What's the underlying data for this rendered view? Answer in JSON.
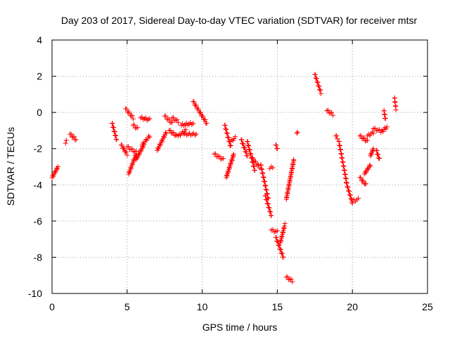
{
  "chart_data": {
    "type": "scatter",
    "title": "Day 203 of 2017, Sidereal Day-to-day VTEC variation (SDTVAR) for receiver mtsr",
    "xlabel": "GPS time / hours",
    "ylabel": "SDTVAR / TECUs",
    "xlim": [
      0,
      25
    ],
    "ylim": [
      -10,
      4
    ],
    "xticks": [
      "0",
      "5",
      "10",
      "15",
      "20",
      "25"
    ],
    "yticks": [
      "-10",
      "-8",
      "-6",
      "-4",
      "-2",
      "0",
      "2",
      "4"
    ],
    "grid": true,
    "marker": "+",
    "color": "#ff0000",
    "segments": [
      {
        "x": [
          0.0,
          0.4
        ],
        "y": [
          -3.6,
          -3.0
        ]
      },
      {
        "x": [
          0.9,
          0.95
        ],
        "y": [
          -1.7,
          -1.6
        ]
      },
      {
        "x": [
          1.2,
          1.6
        ],
        "y": [
          -1.2,
          -1.5
        ]
      },
      {
        "x": [
          4.0,
          4.3
        ],
        "y": [
          -0.6,
          -1.5
        ]
      },
      {
        "x": [
          4.6,
          5.0
        ],
        "y": [
          -1.8,
          -2.3
        ]
      },
      {
        "x": [
          4.9,
          5.4
        ],
        "y": [
          0.2,
          -0.3
        ]
      },
      {
        "x": [
          5.0,
          5.6
        ],
        "y": [
          -1.9,
          -2.2
        ]
      },
      {
        "x": [
          5.1,
          5.6
        ],
        "y": [
          -3.4,
          -2.3
        ]
      },
      {
        "x": [
          5.4,
          5.7
        ],
        "y": [
          -0.7,
          -0.9
        ]
      },
      {
        "x": [
          5.6,
          6.1
        ],
        "y": [
          -2.6,
          -1.8
        ]
      },
      {
        "x": [
          5.9,
          6.5
        ],
        "y": [
          -0.3,
          -0.4
        ]
      },
      {
        "x": [
          6.0,
          6.5
        ],
        "y": [
          -1.8,
          -1.3
        ]
      },
      {
        "x": [
          7.0,
          7.6
        ],
        "y": [
          -2.1,
          -1.1
        ]
      },
      {
        "x": [
          7.5,
          8.0
        ],
        "y": [
          -0.2,
          -0.6
        ]
      },
      {
        "x": [
          7.8,
          8.3
        ],
        "y": [
          -1.0,
          -1.3
        ]
      },
      {
        "x": [
          8.0,
          8.4
        ],
        "y": [
          -0.3,
          -0.5
        ]
      },
      {
        "x": [
          8.4,
          8.9
        ],
        "y": [
          -1.3,
          -1.0
        ]
      },
      {
        "x": [
          8.6,
          9.4
        ],
        "y": [
          -0.7,
          -0.6
        ]
      },
      {
        "x": [
          8.8,
          9.6
        ],
        "y": [
          -1.2,
          -1.2
        ]
      },
      {
        "x": [
          9.4,
          10.3
        ],
        "y": [
          0.6,
          -0.6
        ]
      },
      {
        "x": [
          10.8,
          11.4
        ],
        "y": [
          -2.3,
          -2.6
        ]
      },
      {
        "x": [
          11.5,
          11.9
        ],
        "y": [
          -0.7,
          -1.9
        ]
      },
      {
        "x": [
          11.6,
          12.1
        ],
        "y": [
          -3.6,
          -2.3
        ]
      },
      {
        "x": [
          11.9,
          12.2
        ],
        "y": [
          -1.6,
          -1.4
        ]
      },
      {
        "x": [
          12.6,
          13.0
        ],
        "y": [
          -1.5,
          -2.4
        ]
      },
      {
        "x": [
          13.0,
          13.5
        ],
        "y": [
          -1.6,
          -3.2
        ]
      },
      {
        "x": [
          13.3,
          13.8
        ],
        "y": [
          -2.5,
          -3.0
        ]
      },
      {
        "x": [
          13.9,
          14.4
        ],
        "y": [
          -2.9,
          -4.8
        ]
      },
      {
        "x": [
          14.2,
          14.6
        ],
        "y": [
          -4.6,
          -5.7
        ]
      },
      {
        "x": [
          14.5,
          14.7
        ],
        "y": [
          -3.1,
          -3.0
        ]
      },
      {
        "x": [
          14.6,
          15.0
        ],
        "y": [
          -6.5,
          -6.6
        ]
      },
      {
        "x": [
          14.9,
          15.0
        ],
        "y": [
          -1.8,
          -2.0
        ]
      },
      {
        "x": [
          14.9,
          15.4
        ],
        "y": [
          -6.9,
          -8.0
        ]
      },
      {
        "x": [
          15.2,
          15.5
        ],
        "y": [
          -7.2,
          -6.2
        ]
      },
      {
        "x": [
          15.6,
          16.1
        ],
        "y": [
          -4.8,
          -2.6
        ]
      },
      {
        "x": [
          15.6,
          16.0
        ],
        "y": [
          -9.1,
          -9.3
        ]
      },
      {
        "x": [
          16.3,
          16.35
        ],
        "y": [
          -1.15,
          -1.15
        ]
      },
      {
        "x": [
          17.5,
          17.9
        ],
        "y": [
          2.1,
          1.1
        ]
      },
      {
        "x": [
          18.3,
          18.7
        ],
        "y": [
          0.1,
          -0.1
        ]
      },
      {
        "x": [
          18.9,
          19.0
        ],
        "y": [
          -1.3,
          -1.4
        ]
      },
      {
        "x": [
          19.1,
          19.6
        ],
        "y": [
          -1.6,
          -3.8
        ]
      },
      {
        "x": [
          19.6,
          20.0
        ],
        "y": [
          -3.9,
          -5.0
        ]
      },
      {
        "x": [
          20.0,
          20.4
        ],
        "y": [
          -4.9,
          -4.8
        ]
      },
      {
        "x": [
          20.5,
          20.9
        ],
        "y": [
          -3.6,
          -4.0
        ]
      },
      {
        "x": [
          20.5,
          21.0
        ],
        "y": [
          -1.3,
          -1.6
        ]
      },
      {
        "x": [
          20.8,
          21.2
        ],
        "y": [
          -3.4,
          -2.9
        ]
      },
      {
        "x": [
          21.0,
          21.4
        ],
        "y": [
          -1.3,
          -1.1
        ]
      },
      {
        "x": [
          21.2,
          21.4
        ],
        "y": [
          -2.4,
          -2.0
        ]
      },
      {
        "x": [
          21.4,
          21.8
        ],
        "y": [
          -0.9,
          -1.0
        ]
      },
      {
        "x": [
          21.6,
          21.8
        ],
        "y": [
          -2.1,
          -2.6
        ]
      },
      {
        "x": [
          21.9,
          22.3
        ],
        "y": [
          -1.1,
          -0.8
        ]
      },
      {
        "x": [
          22.1,
          22.2
        ],
        "y": [
          0.1,
          -0.4
        ]
      },
      {
        "x": [
          22.8,
          22.9
        ],
        "y": [
          0.8,
          0.2
        ]
      }
    ]
  }
}
